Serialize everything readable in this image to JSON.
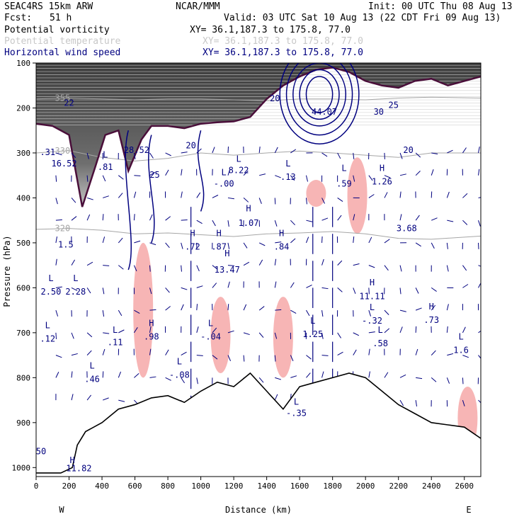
{
  "header": {
    "model": "SEAC4RS 15km ARW",
    "org": "NCAR/MMM",
    "init": "Init: 00 UTC Thu 08 Aug 13",
    "fcst_label": "Fcst:",
    "fcst_value": "51 h",
    "valid": "Valid: 03 UTC Sat 10 Aug 13 (22 CDT Fri 09 Aug 13)"
  },
  "legend": [
    {
      "name": "Potential vorticity",
      "xy": "XY=  36.1,187.3 to 175.8, 77.0",
      "color": "#000000"
    },
    {
      "name": "Potential temperature",
      "xy": "XY=  36.1,187.3 to 175.8, 77.0",
      "color": "#c8c8c8"
    },
    {
      "name": "Horizontal wind speed",
      "xy": "XY=  36.1,187.3 to 175.8, 77.0",
      "color": "#000080"
    }
  ],
  "colors": {
    "pv_line": "#4a0f3a",
    "theta": "#a6a6a6",
    "wind": "#00007f",
    "shade_pink": "#f7b5b5",
    "terrain": "#000000"
  },
  "chart_data": {
    "type": "cross-section",
    "xlabel": "Distance (km)",
    "ylabel": "Pressure (hPa)",
    "xlim": [
      0,
      2700
    ],
    "ylim": [
      1020,
      100
    ],
    "xticks": [
      "0",
      "200",
      "400",
      "600",
      "800",
      "1000",
      "1200",
      "1400",
      "1600",
      "1800",
      "2000",
      "2200",
      "2400",
      "2600"
    ],
    "yticks": [
      "100",
      "200",
      "300",
      "400",
      "500",
      "600",
      "700",
      "800",
      "900",
      "1000"
    ],
    "end_labels": {
      "left": "W",
      "right": "E"
    },
    "terrain": [
      {
        "x": 0,
        "p": 1012
      },
      {
        "x": 150,
        "p": 1012
      },
      {
        "x": 220,
        "p": 1000
      },
      {
        "x": 250,
        "p": 950
      },
      {
        "x": 300,
        "p": 920
      },
      {
        "x": 400,
        "p": 900
      },
      {
        "x": 500,
        "p": 870
      },
      {
        "x": 600,
        "p": 860
      },
      {
        "x": 700,
        "p": 845
      },
      {
        "x": 800,
        "p": 840
      },
      {
        "x": 900,
        "p": 855
      },
      {
        "x": 1000,
        "p": 830
      },
      {
        "x": 1100,
        "p": 810
      },
      {
        "x": 1200,
        "p": 820
      },
      {
        "x": 1300,
        "p": 790
      },
      {
        "x": 1400,
        "p": 830
      },
      {
        "x": 1500,
        "p": 870
      },
      {
        "x": 1600,
        "p": 820
      },
      {
        "x": 1700,
        "p": 810
      },
      {
        "x": 1800,
        "p": 800
      },
      {
        "x": 1900,
        "p": 790
      },
      {
        "x": 2000,
        "p": 800
      },
      {
        "x": 2100,
        "p": 830
      },
      {
        "x": 2200,
        "p": 860
      },
      {
        "x": 2300,
        "p": 880
      },
      {
        "x": 2400,
        "p": 900
      },
      {
        "x": 2500,
        "p": 905
      },
      {
        "x": 2600,
        "p": 910
      },
      {
        "x": 2700,
        "p": 935
      }
    ],
    "theta_contours": [
      {
        "label": "320",
        "p": [
          470,
          468,
          472,
          480,
          478,
          482,
          486,
          480,
          478,
          475,
          480,
          490,
          492,
          485
        ]
      },
      {
        "label": "330",
        "p": [
          300,
          295,
          310,
          318,
          312,
          300,
          305,
          300,
          296,
          300,
          305,
          310,
          300,
          300
        ]
      },
      {
        "label": "355",
        "p": [
          180,
          178,
          180,
          182,
          180,
          180,
          182,
          184,
          180,
          180,
          182,
          178,
          176,
          178
        ]
      }
    ],
    "theta_x": [
      0,
      200,
      400,
      600,
      800,
      1000,
      1200,
      1400,
      1600,
      1800,
      2000,
      2200,
      2400,
      2700
    ],
    "pv_tropopause": [
      {
        "x": 0,
        "p": 235
      },
      {
        "x": 100,
        "p": 240
      },
      {
        "x": 200,
        "p": 260
      },
      {
        "x": 280,
        "p": 420
      },
      {
        "x": 360,
        "p": 330
      },
      {
        "x": 420,
        "p": 260
      },
      {
        "x": 500,
        "p": 250
      },
      {
        "x": 560,
        "p": 340
      },
      {
        "x": 640,
        "p": 270
      },
      {
        "x": 700,
        "p": 240
      },
      {
        "x": 800,
        "p": 240
      },
      {
        "x": 900,
        "p": 245
      },
      {
        "x": 1000,
        "p": 235
      },
      {
        "x": 1100,
        "p": 232
      },
      {
        "x": 1200,
        "p": 230
      },
      {
        "x": 1300,
        "p": 220
      },
      {
        "x": 1400,
        "p": 180
      },
      {
        "x": 1500,
        "p": 150
      },
      {
        "x": 1600,
        "p": 130
      },
      {
        "x": 1700,
        "p": 115
      },
      {
        "x": 1800,
        "p": 110
      },
      {
        "x": 1900,
        "p": 120
      },
      {
        "x": 2000,
        "p": 140
      },
      {
        "x": 2100,
        "p": 150
      },
      {
        "x": 2200,
        "p": 155
      },
      {
        "x": 2300,
        "p": 140
      },
      {
        "x": 2400,
        "p": 135
      },
      {
        "x": 2500,
        "p": 150
      },
      {
        "x": 2600,
        "p": 140
      },
      {
        "x": 2700,
        "p": 130
      }
    ],
    "wind_jet": {
      "center_x": 1720,
      "center_p": 170,
      "contours": [
        {
          "label": "20",
          "rx": 240,
          "rp": 110
        },
        {
          "label": "25",
          "rx": 200,
          "rp": 90
        },
        {
          "label": "30",
          "rx": 160,
          "rp": 70
        },
        {
          "label": "35",
          "rx": 120,
          "rp": 55
        },
        {
          "label": "40",
          "rx": 80,
          "rp": 40
        }
      ]
    },
    "shaded_regions": [
      {
        "x": 650,
        "p1": 500,
        "p2": 800
      },
      {
        "x": 1120,
        "p1": 620,
        "p2": 790
      },
      {
        "x": 1500,
        "p1": 620,
        "p2": 800
      },
      {
        "x": 1700,
        "p1": 360,
        "p2": 420
      },
      {
        "x": 1950,
        "p1": 310,
        "p2": 480
      },
      {
        "x": 2620,
        "p1": 820,
        "p2": 960
      }
    ],
    "annotations": [
      {
        "text": "H",
        "x": 950,
        "p": 485
      },
      {
        "text": ".72",
        "x": 950,
        "p": 515
      },
      {
        "text": "H",
        "x": 1110,
        "p": 485
      },
      {
        "text": ".87",
        "x": 1110,
        "p": 515
      },
      {
        "text": "H",
        "x": 1490,
        "p": 485
      },
      {
        "text": ".84",
        "x": 1490,
        "p": 515
      },
      {
        "text": "H",
        "x": 1290,
        "p": 430
      },
      {
        "text": "1.07",
        "x": 1290,
        "p": 462
      },
      {
        "text": "H",
        "x": 1160,
        "p": 530
      },
      {
        "text": "13.47",
        "x": 1160,
        "p": 566
      },
      {
        "text": "H",
        "x": 2100,
        "p": 340
      },
      {
        "text": "1.26",
        "x": 2100,
        "p": 370
      },
      {
        "text": "3.68",
        "x": 2250,
        "p": 474
      },
      {
        "text": "H",
        "x": 2040,
        "p": 595
      },
      {
        "text": "11.11",
        "x": 2040,
        "p": 625
      },
      {
        "text": "L",
        "x": 2040,
        "p": 650
      },
      {
        "text": "-.32",
        "x": 2040,
        "p": 680
      },
      {
        "text": "H",
        "x": 2400,
        "p": 648
      },
      {
        "text": ".73",
        "x": 2400,
        "p": 678
      },
      {
        "text": "L",
        "x": 2090,
        "p": 700
      },
      {
        "text": ".58",
        "x": 2090,
        "p": 730
      },
      {
        "text": "L",
        "x": 2580,
        "p": 715
      },
      {
        "text": "1.6",
        "x": 2580,
        "p": 745
      },
      {
        "text": "L",
        "x": 1680,
        "p": 680
      },
      {
        "text": "1.25",
        "x": 1680,
        "p": 710
      },
      {
        "text": "L",
        "x": 1230,
        "p": 320
      },
      {
        "text": "8.22",
        "x": 1230,
        "p": 345
      },
      {
        "text": "L",
        "x": 1140,
        "p": 350
      },
      {
        "text": "-.00",
        "x": 1140,
        "p": 375
      },
      {
        "text": "L",
        "x": 1530,
        "p": 330
      },
      {
        "text": ".13",
        "x": 1530,
        "p": 360
      },
      {
        "text": "L",
        "x": 1870,
        "p": 340
      },
      {
        "text": ".59",
        "x": 1870,
        "p": 375
      },
      {
        "text": "L",
        "x": 420,
        "p": 310
      },
      {
        "text": ".81",
        "x": 420,
        "p": 338
      },
      {
        "text": "28.52",
        "x": 610,
        "p": 300
      },
      {
        "text": "16.52",
        "x": 170,
        "p": 330
      },
      {
        "text": ".31",
        "x": 70,
        "p": 305
      },
      {
        "text": "L",
        "x": 90,
        "p": 585
      },
      {
        "text": "2.50",
        "x": 90,
        "p": 615
      },
      {
        "text": "L",
        "x": 240,
        "p": 585
      },
      {
        "text": "2.28",
        "x": 240,
        "p": 615
      },
      {
        "text": "L",
        "x": 70,
        "p": 690
      },
      {
        "text": ".12",
        "x": 70,
        "p": 720
      },
      {
        "text": "L",
        "x": 340,
        "p": 780
      },
      {
        "text": ".46",
        "x": 340,
        "p": 810
      },
      {
        "text": "L",
        "x": 480,
        "p": 700
      },
      {
        "text": ".11",
        "x": 480,
        "p": 728
      },
      {
        "text": "H",
        "x": 700,
        "p": 685
      },
      {
        "text": ".98",
        "x": 700,
        "p": 715
      },
      {
        "text": "L",
        "x": 1060,
        "p": 685
      },
      {
        "text": "-.04",
        "x": 1060,
        "p": 715
      },
      {
        "text": "L",
        "x": 870,
        "p": 770
      },
      {
        "text": "-.08",
        "x": 870,
        "p": 800
      },
      {
        "text": "L",
        "x": 1580,
        "p": 860
      },
      {
        "text": "-.35",
        "x": 1580,
        "p": 885
      },
      {
        "text": "20",
        "x": 1450,
        "p": 185
      },
      {
        "text": "25",
        "x": 2170,
        "p": 200
      },
      {
        "text": "30",
        "x": 2080,
        "p": 215
      },
      {
        "text": "20",
        "x": 2260,
        "p": 300
      },
      {
        "text": "1.5",
        "x": 180,
        "p": 510
      },
      {
        "text": "50",
        "x": 30,
        "p": 970
      },
      {
        "text": "H",
        "x": 220,
        "p": 990
      },
      {
        "text": "11.82",
        "x": 260,
        "p": 1008
      },
      {
        "text": "44.07",
        "x": 1750,
        "p": 215
      },
      {
        "text": "20",
        "x": 940,
        "p": 290
      },
      {
        "text": "25",
        "x": 720,
        "p": 355
      },
      {
        "text": "22",
        "x": 200,
        "p": 195
      }
    ]
  }
}
